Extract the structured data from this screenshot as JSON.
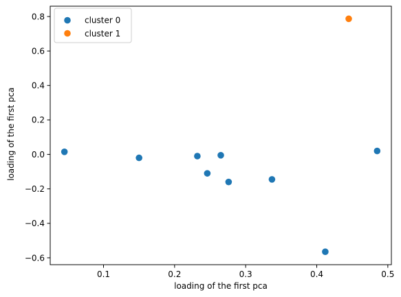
{
  "chart_data": {
    "type": "scatter",
    "title": "",
    "xlabel": "loading of the first pca",
    "ylabel": "loading of the first pca",
    "xlim": [
      0.025,
      0.505
    ],
    "ylim": [
      -0.64,
      0.86
    ],
    "xticks": [
      0.1,
      0.2,
      0.3,
      0.4,
      0.5
    ],
    "xtick_labels": [
      "0.1",
      "0.2",
      "0.3",
      "0.4",
      "0.5"
    ],
    "yticks": [
      -0.6,
      -0.4,
      -0.2,
      0.0,
      0.2,
      0.4,
      0.6,
      0.8
    ],
    "ytick_labels": [
      "−0.6",
      "−0.4",
      "−0.2",
      "0.0",
      "0.2",
      "0.4",
      "0.6",
      "0.8"
    ],
    "grid": false,
    "legend_position": "top-left",
    "series": [
      {
        "name": "cluster 0",
        "color": "#1f77b4",
        "points": [
          {
            "x": 0.045,
            "y": 0.015
          },
          {
            "x": 0.15,
            "y": -0.02
          },
          {
            "x": 0.232,
            "y": -0.01
          },
          {
            "x": 0.246,
            "y": -0.11
          },
          {
            "x": 0.265,
            "y": -0.005
          },
          {
            "x": 0.276,
            "y": -0.16
          },
          {
            "x": 0.337,
            "y": -0.145
          },
          {
            "x": 0.412,
            "y": -0.565
          },
          {
            "x": 0.485,
            "y": 0.02
          }
        ]
      },
      {
        "name": "cluster 1",
        "color": "#ff7f0e",
        "points": [
          {
            "x": 0.445,
            "y": 0.787
          }
        ]
      }
    ]
  }
}
